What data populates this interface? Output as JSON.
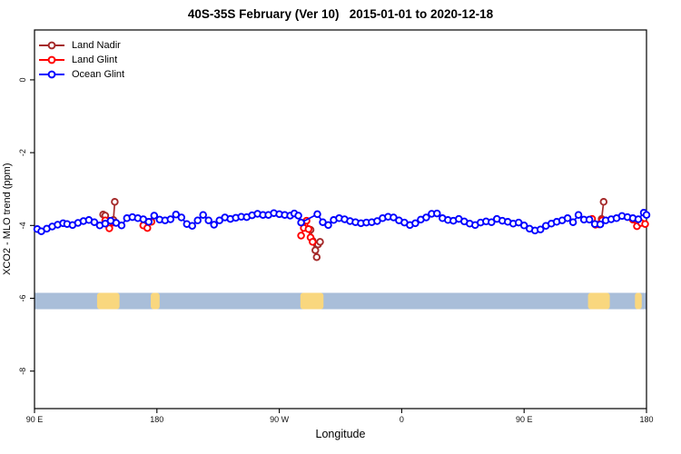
{
  "title": "40S-35S February (Ver 10)   2015-01-01 to 2020-12-18",
  "chart_data": {
    "type": "scatter-line",
    "title": "40S-35S February (Ver 10)   2015-01-01 to 2020-12-18",
    "xlabel": "Longitude",
    "ylabel": "XCO2 - MLO trend (ppm)",
    "xlim": [
      90,
      540
    ],
    "ylim": [
      1.37,
      -9.03
    ],
    "x_ticks": [
      {
        "lon": 90,
        "label": "90 E"
      },
      {
        "lon": 180,
        "label": "180"
      },
      {
        "lon": 270,
        "label": "90 W"
      },
      {
        "lon": 360,
        "label": "0"
      },
      {
        "lon": 450,
        "label": "90 E"
      },
      {
        "lon": 540,
        "label": "180"
      }
    ],
    "y_ticks": [
      {
        "value": 0,
        "label": "0"
      },
      {
        "value": -2,
        "label": "-2"
      },
      {
        "value": -4,
        "label": "-4"
      },
      {
        "value": -6,
        "label": "-6"
      },
      {
        "value": -8,
        "label": "-8"
      }
    ],
    "legend_position": "top-left",
    "grid": false,
    "series": [
      {
        "name": "Land Nadir",
        "color": "#A52A2A",
        "segments": [
          [
            [
              140.5,
              -3.7
            ],
            [
              142,
              -3.73
            ],
            [
              148,
              -3.85
            ],
            [
              149,
              -3.35
            ]
          ],
          [
            [
              293,
              -4.12
            ],
            [
              294.5,
              -4.42
            ],
            [
              296.5,
              -4.68
            ],
            [
              297.5,
              -4.87
            ],
            [
              298.5,
              -4.52
            ],
            [
              300,
              -4.45
            ]
          ],
          [
            [
              507,
              -3.82
            ],
            [
              508.5,
              -3.35
            ]
          ]
        ]
      },
      {
        "name": "Land Glint",
        "color": "#FF0000",
        "segments": [
          [
            [
              142,
              -3.86
            ],
            [
              145,
              -4.08
            ],
            [
              148,
              -3.92
            ]
          ],
          [
            [
              170,
              -4.0
            ],
            [
              173,
              -4.07
            ],
            [
              176,
              -3.9
            ]
          ],
          [
            [
              286,
              -4.28
            ],
            [
              288,
              -4.07
            ],
            [
              290,
              -3.87
            ],
            [
              291.5,
              -4.1
            ],
            [
              293,
              -4.33
            ],
            [
              294.5,
              -4.45
            ]
          ],
          [
            [
              500,
              -3.82
            ],
            [
              502.5,
              -3.98
            ],
            [
              505,
              -3.97
            ],
            [
              507.5,
              -3.86
            ]
          ],
          [
            [
              530,
              -3.84
            ],
            [
              533,
              -4.02
            ],
            [
              536,
              -3.93
            ],
            [
              539,
              -3.96
            ]
          ]
        ]
      },
      {
        "name": "Ocean Glint",
        "color": "#0000FF",
        "segments": [
          [
            [
              92,
              -4.1
            ],
            [
              95,
              -4.16
            ],
            [
              99,
              -4.09
            ],
            [
              103,
              -4.03
            ],
            [
              107,
              -3.98
            ],
            [
              111,
              -3.94
            ],
            [
              114,
              -3.96
            ],
            [
              118,
              -3.99
            ],
            [
              122,
              -3.93
            ],
            [
              126,
              -3.88
            ],
            [
              130,
              -3.85
            ],
            [
              134,
              -3.91
            ],
            [
              138,
              -4.0
            ],
            [
              142,
              -3.95
            ],
            [
              146,
              -3.87
            ],
            [
              150,
              -3.93
            ],
            [
              154,
              -4.0
            ],
            [
              158,
              -3.8
            ],
            [
              162,
              -3.77
            ],
            [
              166,
              -3.8
            ],
            [
              170,
              -3.83
            ],
            [
              174,
              -3.9
            ],
            [
              178,
              -3.73
            ],
            [
              182,
              -3.84
            ],
            [
              186,
              -3.86
            ],
            [
              190,
              -3.83
            ],
            [
              194,
              -3.7
            ],
            [
              198,
              -3.78
            ],
            [
              202,
              -3.96
            ],
            [
              206,
              -4.01
            ],
            [
              210,
              -3.86
            ],
            [
              214,
              -3.71
            ],
            [
              218,
              -3.86
            ],
            [
              222,
              -3.98
            ],
            [
              226,
              -3.86
            ],
            [
              230,
              -3.78
            ],
            [
              234,
              -3.82
            ],
            [
              238,
              -3.79
            ],
            [
              242,
              -3.76
            ],
            [
              246,
              -3.77
            ],
            [
              250,
              -3.72
            ],
            [
              254,
              -3.68
            ],
            [
              258,
              -3.71
            ],
            [
              262,
              -3.71
            ],
            [
              266,
              -3.66
            ],
            [
              270,
              -3.69
            ],
            [
              274,
              -3.71
            ],
            [
              278,
              -3.73
            ],
            [
              281,
              -3.67
            ],
            [
              284,
              -3.73
            ],
            [
              286,
              -3.92
            ],
            [
              298,
              -3.69
            ],
            [
              302,
              -3.91
            ],
            [
              306,
              -3.99
            ],
            [
              310,
              -3.85
            ],
            [
              314,
              -3.8
            ],
            [
              318,
              -3.83
            ],
            [
              322,
              -3.88
            ],
            [
              326,
              -3.91
            ],
            [
              330,
              -3.94
            ],
            [
              334,
              -3.92
            ],
            [
              338,
              -3.91
            ],
            [
              342,
              -3.88
            ],
            [
              346,
              -3.8
            ],
            [
              350,
              -3.76
            ],
            [
              354,
              -3.78
            ],
            [
              358,
              -3.86
            ],
            [
              362,
              -3.92
            ],
            [
              366,
              -3.99
            ],
            [
              370,
              -3.94
            ],
            [
              374,
              -3.84
            ],
            [
              378,
              -3.78
            ],
            [
              382,
              -3.68
            ],
            [
              386,
              -3.67
            ],
            [
              390,
              -3.8
            ],
            [
              394,
              -3.85
            ],
            [
              398,
              -3.87
            ],
            [
              402,
              -3.82
            ],
            [
              406,
              -3.89
            ],
            [
              410,
              -3.95
            ],
            [
              414,
              -3.99
            ],
            [
              418,
              -3.92
            ],
            [
              422,
              -3.89
            ],
            [
              426,
              -3.91
            ],
            [
              430,
              -3.82
            ],
            [
              434,
              -3.87
            ],
            [
              438,
              -3.9
            ],
            [
              442,
              -3.95
            ],
            [
              446,
              -3.92
            ],
            [
              450,
              -4.0
            ],
            [
              454,
              -4.09
            ],
            [
              458,
              -4.14
            ],
            [
              462,
              -4.11
            ],
            [
              466,
              -4.01
            ],
            [
              470,
              -3.95
            ],
            [
              474,
              -3.9
            ],
            [
              478,
              -3.86
            ],
            [
              482,
              -3.8
            ],
            [
              486,
              -3.91
            ],
            [
              490,
              -3.71
            ],
            [
              494,
              -3.84
            ],
            [
              498,
              -3.84
            ],
            [
              502,
              -3.96
            ],
            [
              506,
              -3.97
            ],
            [
              510,
              -3.86
            ],
            [
              514,
              -3.83
            ],
            [
              518,
              -3.8
            ],
            [
              522,
              -3.74
            ],
            [
              526,
              -3.77
            ],
            [
              530,
              -3.8
            ],
            [
              534,
              -3.83
            ],
            [
              538,
              -3.65
            ],
            [
              540,
              -3.71
            ]
          ]
        ]
      }
    ],
    "map_band": {
      "description": "land/ocean strip of the 40S-35S latitude band",
      "ocean_color": "#A9BED9",
      "land_color": "#F9D77E",
      "y_top": -5.85,
      "y_bottom": -6.3,
      "land_blobs": [
        {
          "from": 136,
          "to": 152.5
        },
        {
          "from": 175.5,
          "to": 182
        },
        {
          "from": 285.5,
          "to": 302.5
        },
        {
          "from": 497,
          "to": 513
        },
        {
          "from": 531.5,
          "to": 536.5
        }
      ]
    }
  }
}
